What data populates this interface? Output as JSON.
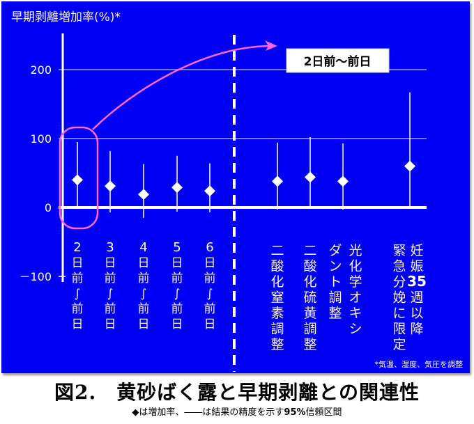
{
  "chart_data": {
    "type": "scatter",
    "title": "図2. 黄砂ばく露と早期剥離との関連性",
    "subtitle": "◆は増加率、――は結果の精度を示す95%信頼区間",
    "ylabel": "早期剥離増加率(%)*",
    "xlabel": "",
    "ylim": [
      -100,
      250
    ],
    "yticks": [
      -100,
      0,
      100,
      200
    ],
    "ytick_labels": [
      "－100",
      "0",
      "100",
      "200"
    ],
    "grid": true,
    "categories": [
      "2日前～前日",
      "3日前～前日",
      "4日前～前日",
      "5日前～前日",
      "6日前～前日",
      "二酸化窒素調整",
      "二酸化硫黄調整",
      "光化学オキシダント調整",
      "妊娠35週以降緊急分娩に限定"
    ],
    "series": [
      {
        "name": "増加率",
        "marker": "diamond",
        "values": [
          40,
          31,
          19,
          29,
          24,
          38,
          44,
          38,
          60
        ]
      },
      {
        "name": "95%信頼区間 下限",
        "values": [
          0,
          -7,
          -15,
          -6,
          -7,
          -3,
          0,
          -3,
          0
        ]
      },
      {
        "name": "95%信頼区間 上限",
        "values": [
          95,
          82,
          63,
          75,
          64,
          94,
          102,
          93,
          167
        ]
      }
    ],
    "annotations": [
      {
        "text": "2日前～前日",
        "type": "callout-box",
        "target": "2日前～前日"
      },
      {
        "text": "*気温、湿度、気圧を調整",
        "type": "footnote"
      }
    ],
    "divider": {
      "style": "dashed",
      "between": [
        "6日前～前日",
        "二酸化窒素調整"
      ]
    }
  },
  "labels": {
    "y_axis_title": "早期剥離増加率(%)*",
    "callout": "2日前～前日",
    "footnote": "*気温、湿度、気圧を調整",
    "caption_title": "図2.　黄砂ばく露と早期剥離との関連性",
    "caption_sub_pre": "◆は増加率、――は結果の精度を示す",
    "caption_sub_bold": "95%",
    "caption_sub_post": "信頼区間",
    "x_labels_left": [
      [
        "2",
        "日",
        "前",
        "～",
        "前",
        "日"
      ],
      [
        "3",
        "日",
        "前",
        "～",
        "前",
        "日"
      ],
      [
        "4",
        "日",
        "前",
        "～",
        "前",
        "日"
      ],
      [
        "5",
        "日",
        "前",
        "～",
        "前",
        "日"
      ],
      [
        "6",
        "日",
        "前",
        "～",
        "前",
        "日"
      ]
    ],
    "x_labels_right": [
      {
        "cols": [
          "二酸化窒素調整"
        ]
      },
      {
        "cols": [
          "二酸化硫黄調整"
        ]
      },
      {
        "cols": [
          "光化学オキシ",
          "ダント調整"
        ]
      },
      {
        "cols": [
          "妊娠35週以降",
          "緊急分娩に限定"
        ]
      }
    ]
  },
  "colors": {
    "background": "#0000f5",
    "foreground": "#ffffff",
    "gridline": "#9a9aff",
    "highlight": "#ff66e0",
    "label_text": "#f5f0d8"
  }
}
